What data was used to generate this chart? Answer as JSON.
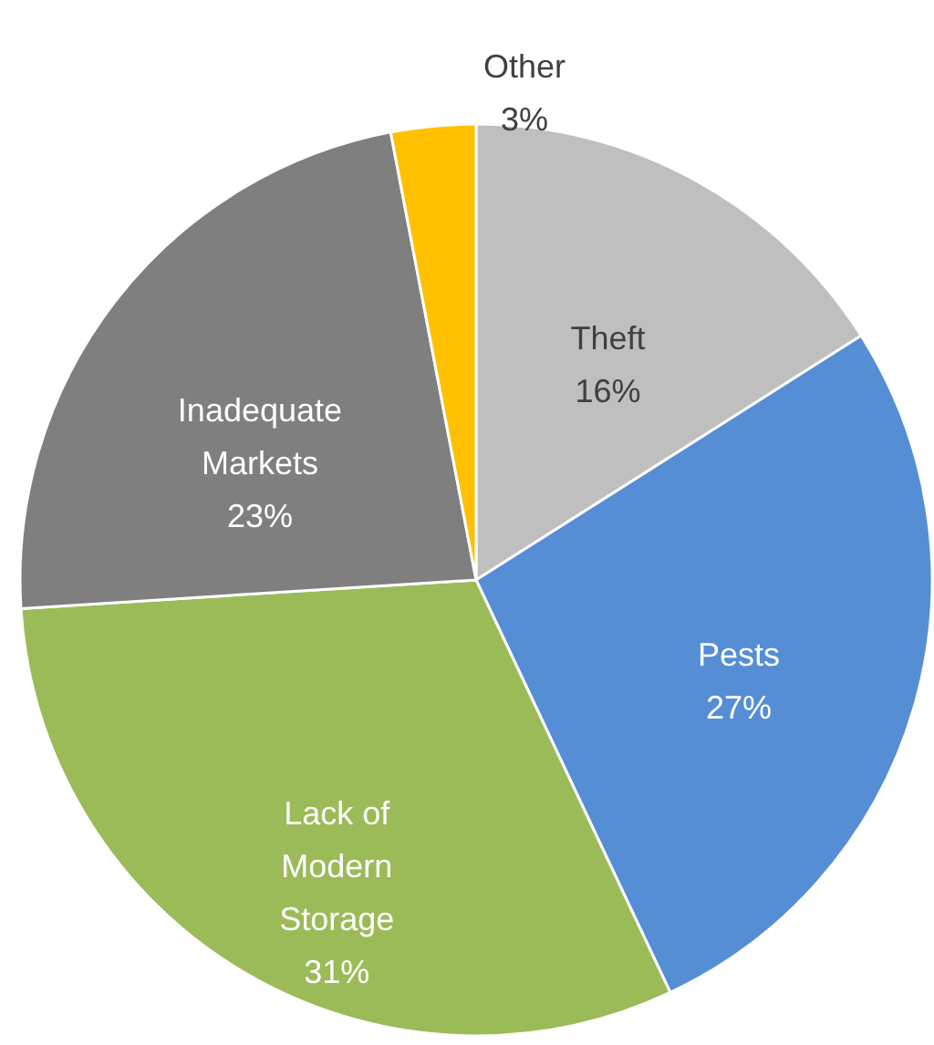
{
  "chart_data": {
    "type": "pie",
    "categories": [
      "Theft",
      "Pests",
      "Lack of Modern Storage",
      "Inadequate Markets",
      "Other"
    ],
    "values": [
      16,
      27,
      31,
      23,
      3
    ],
    "value_labels": [
      "16%",
      "27%",
      "31%",
      "23%",
      "3%"
    ],
    "colors": [
      "#bfbfbf",
      "#558ed5",
      "#9bbb59",
      "#7f7f7f",
      "#ffc000"
    ]
  }
}
